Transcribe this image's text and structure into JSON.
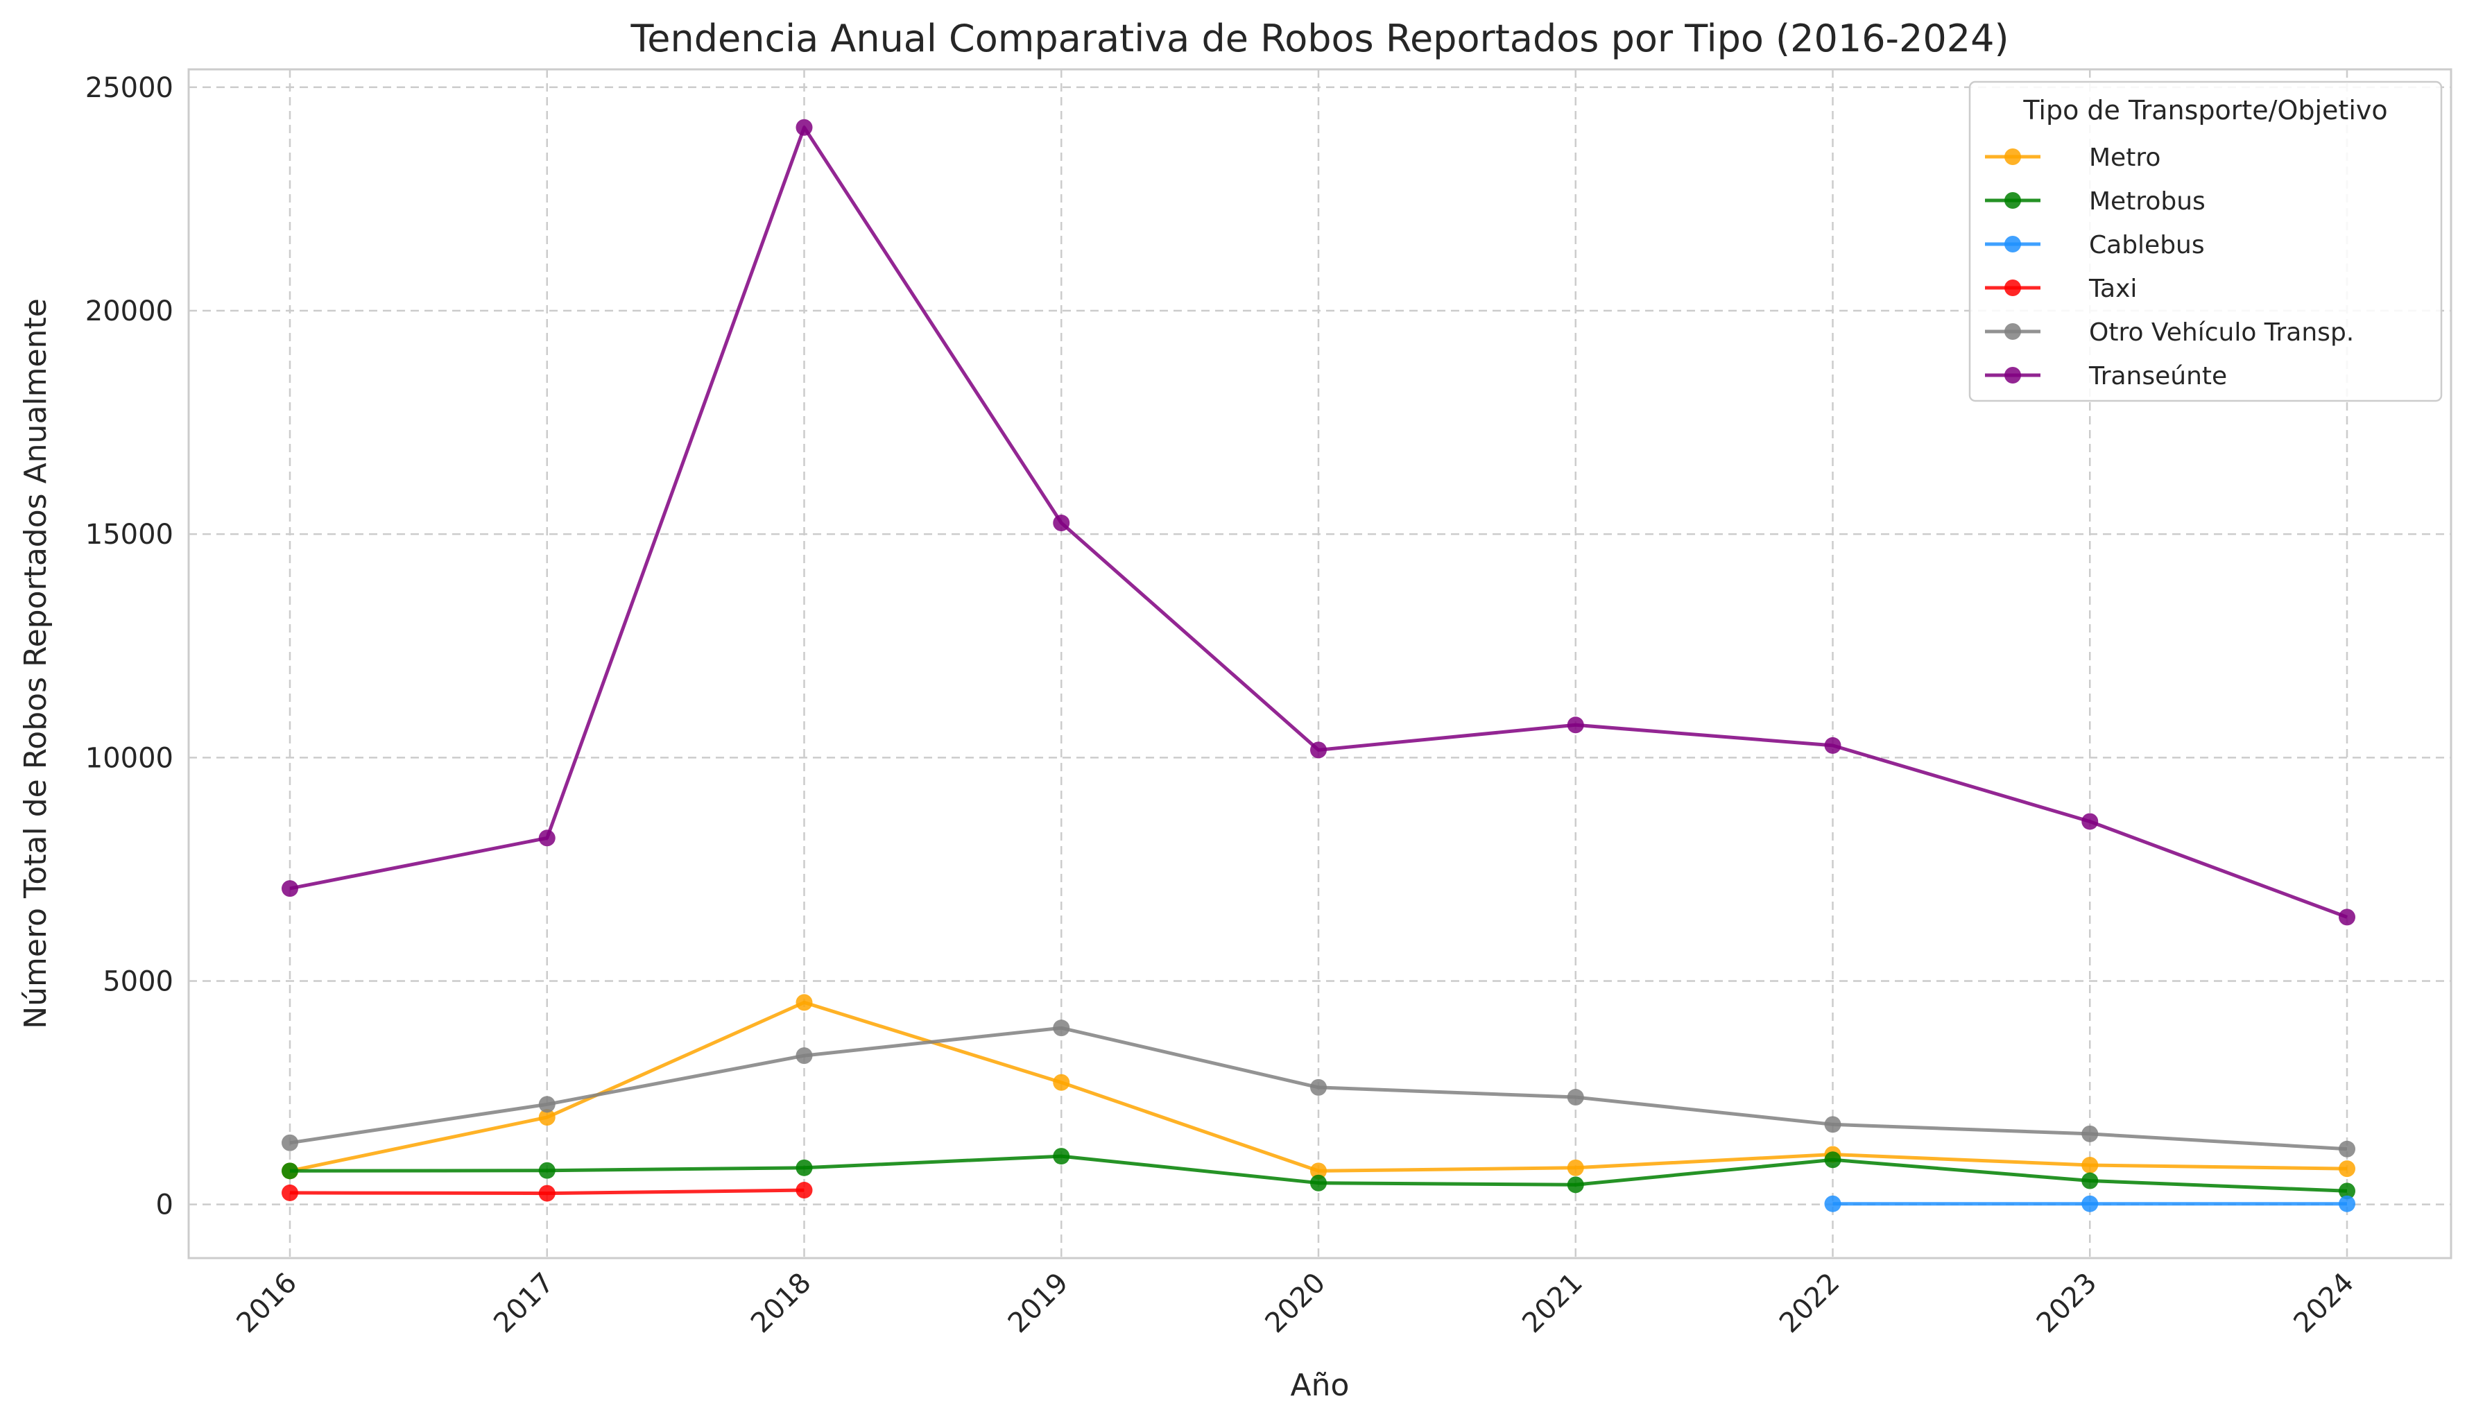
{
  "chart_data": {
    "type": "line",
    "title": "Tendencia Anual Comparativa de Robos Reportados por Tipo (2016-2024)",
    "xlabel": "Año",
    "ylabel": "Número Total de Robos Reportados Anualmente",
    "x": [
      "2016",
      "2017",
      "2018",
      "2019",
      "2020",
      "2021",
      "2022",
      "2023",
      "2024"
    ],
    "ylim": [
      -1200,
      25400
    ],
    "yticks": [
      0,
      5000,
      10000,
      15000,
      20000,
      25000
    ],
    "grid": true,
    "legend": {
      "title": "Tipo de Transporte/Objetivo",
      "placement": "top-right"
    },
    "series": [
      {
        "name": "Metro",
        "color": "#ffa500",
        "values": [
          750,
          1950,
          4520,
          2730,
          750,
          820,
          1120,
          880,
          800
        ]
      },
      {
        "name": "Metrobus",
        "color": "#008000",
        "values": [
          750,
          760,
          820,
          1080,
          480,
          440,
          1000,
          530,
          300
        ]
      },
      {
        "name": "Cablebus",
        "color": "#1e90ff",
        "values": [
          null,
          null,
          null,
          null,
          null,
          null,
          15,
          15,
          15
        ]
      },
      {
        "name": "Taxi",
        "color": "#ff0000",
        "values": [
          260,
          250,
          320,
          null,
          null,
          null,
          null,
          null,
          null
        ]
      },
      {
        "name": "Otro Vehículo Transp.",
        "color": "#808080",
        "values": [
          1380,
          2240,
          3330,
          3950,
          2620,
          2400,
          1790,
          1580,
          1240
        ]
      },
      {
        "name": "Transeúnte",
        "color": "#800080",
        "values": [
          7070,
          8200,
          24100,
          15250,
          10170,
          10730,
          10270,
          8570,
          6430
        ]
      }
    ]
  }
}
